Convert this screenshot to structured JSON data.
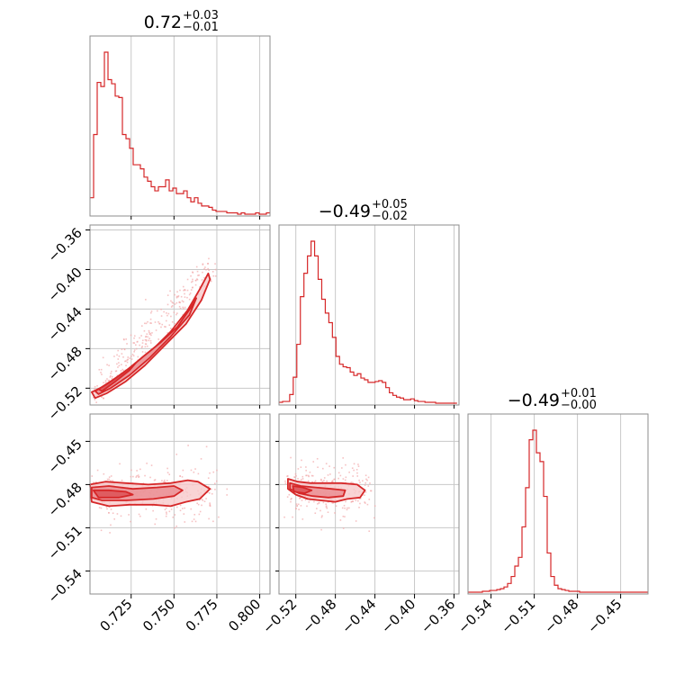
{
  "colors": {
    "series": "#d62728",
    "fill_outer": "#f7c9ca",
    "fill_inner": "#e8868a",
    "grid": "#c8c8c8",
    "frame": "#8c8c8c"
  },
  "chart_data": {
    "type": "corner",
    "grid": true,
    "parameters": [
      {
        "id": "p1",
        "range": [
          0.701,
          0.806
        ],
        "ticks": [
          0.725,
          0.75,
          0.775,
          0.8
        ],
        "tick_labels": [
          "0.725",
          "0.750",
          "0.775",
          "0.800"
        ],
        "title": {
          "value": "0.72",
          "upper": "+0.03",
          "lower": "−0.01"
        }
      },
      {
        "id": "p2",
        "range": [
          -0.537,
          -0.355
        ],
        "ticks": [
          -0.52,
          -0.48,
          -0.44,
          -0.4,
          -0.36
        ],
        "tick_labels": [
          "−0.52",
          "−0.48",
          "−0.44",
          "−0.40",
          "−0.36"
        ],
        "title": {
          "value": "−0.49",
          "upper": "+0.05",
          "lower": "−0.02"
        }
      },
      {
        "id": "p3",
        "range": [
          -0.556,
          -0.431
        ],
        "ticks": [
          -0.54,
          -0.51,
          -0.48,
          -0.45
        ],
        "tick_labels": [
          "−0.54",
          "−0.51",
          "−0.48",
          "−0.45"
        ],
        "title": {
          "value": "−0.49",
          "upper": "+0.01",
          "lower": "−0.00"
        }
      }
    ],
    "histograms": [
      {
        "param": "p1",
        "bin_edges": [
          0.701,
          0.7031,
          0.7052,
          0.7073,
          0.7094,
          0.7115,
          0.7136,
          0.7157,
          0.7178,
          0.7199,
          0.722,
          0.7241,
          0.7262,
          0.7283,
          0.7304,
          0.7325,
          0.7346,
          0.7367,
          0.7388,
          0.7409,
          0.743,
          0.7451,
          0.7472,
          0.7493,
          0.7514,
          0.7535,
          0.7556,
          0.7577,
          0.7598,
          0.7619,
          0.764,
          0.7661,
          0.7682,
          0.7703,
          0.7724,
          0.7745,
          0.7766,
          0.7787,
          0.7808,
          0.7829,
          0.785,
          0.7871,
          0.7892,
          0.7913,
          0.7934,
          0.7955,
          0.7976,
          0.7997,
          0.8018,
          0.8039,
          0.806
        ],
        "counts": [
          12,
          58,
          96,
          93,
          118,
          98,
          95,
          86,
          85,
          58,
          55,
          48,
          36,
          36,
          33,
          27,
          24,
          20,
          17,
          20,
          20,
          25,
          17,
          19,
          15,
          15,
          17,
          12,
          9,
          12,
          8,
          6,
          6,
          5,
          3,
          2,
          2,
          2,
          1,
          1,
          1,
          0,
          1,
          0,
          0,
          0,
          1,
          0,
          0,
          1
        ]
      },
      {
        "param": "p2",
        "bin_edges": [
          -0.537,
          -0.5334,
          -0.5298,
          -0.5262,
          -0.5226,
          -0.519,
          -0.5154,
          -0.5118,
          -0.5082,
          -0.5046,
          -0.501,
          -0.4974,
          -0.4938,
          -0.4902,
          -0.4866,
          -0.483,
          -0.4794,
          -0.4758,
          -0.4722,
          -0.4686,
          -0.465,
          -0.4614,
          -0.4578,
          -0.4542,
          -0.4506,
          -0.447,
          -0.4434,
          -0.4398,
          -0.4362,
          -0.4326,
          -0.429,
          -0.4254,
          -0.4218,
          -0.4182,
          -0.4146,
          -0.411,
          -0.4074,
          -0.4038,
          -0.4002,
          -0.3966,
          -0.393,
          -0.3894,
          -0.3858,
          -0.3822,
          -0.3786,
          -0.375,
          -0.3714,
          -0.3678,
          -0.3642,
          -0.3606,
          -0.357
        ],
        "counts": [
          1,
          2,
          2,
          10,
          30,
          68,
          123,
          150,
          170,
          187,
          170,
          143,
          120,
          104,
          93,
          76,
          54,
          45,
          42,
          41,
          36,
          32,
          34,
          29,
          27,
          24,
          24,
          25,
          26,
          24,
          18,
          12,
          9,
          7,
          6,
          4,
          4,
          5,
          3,
          2,
          2,
          1,
          1,
          1,
          0,
          0,
          0,
          0,
          0,
          0
        ]
      },
      {
        "param": "p3",
        "bin_edges": [
          -0.556,
          -0.5535,
          -0.551,
          -0.5485,
          -0.546,
          -0.5435,
          -0.541,
          -0.5385,
          -0.536,
          -0.5335,
          -0.531,
          -0.5285,
          -0.526,
          -0.5235,
          -0.521,
          -0.5185,
          -0.516,
          -0.5135,
          -0.511,
          -0.5085,
          -0.506,
          -0.5035,
          -0.501,
          -0.4985,
          -0.496,
          -0.4935,
          -0.491,
          -0.4885,
          -0.486,
          -0.4835,
          -0.481,
          -0.4785,
          -0.476,
          -0.4735,
          -0.471,
          -0.4685,
          -0.466,
          -0.4635,
          -0.461,
          -0.4585,
          -0.456,
          -0.4535,
          -0.451,
          -0.4485,
          -0.446,
          -0.4435,
          -0.441,
          -0.4385,
          -0.436,
          -0.4335,
          -0.431
        ],
        "counts": [
          0,
          0,
          0,
          0,
          1,
          1,
          2,
          2,
          3,
          4,
          6,
          10,
          18,
          30,
          40,
          75,
          120,
          175,
          186,
          160,
          150,
          110,
          45,
          18,
          8,
          4,
          3,
          2,
          1,
          1,
          1,
          0,
          0,
          0,
          0,
          0,
          0,
          0,
          0,
          0,
          0,
          0,
          0,
          0,
          0,
          0,
          0,
          0,
          0,
          0
        ]
      }
    ],
    "scatter_clouds": [
      {
        "x": "p1",
        "y": "p2",
        "description_points": "posterior samples"
      },
      {
        "x": "p1",
        "y": "p3",
        "description_points": "posterior samples"
      },
      {
        "x": "p2",
        "y": "p3",
        "description_points": "posterior samples"
      }
    ],
    "contours": [
      {
        "x": "p1",
        "y": "p2",
        "levels": [
          [
            [
              0.702,
              -0.524
            ],
            [
              0.708,
              -0.519
            ],
            [
              0.718,
              -0.508
            ],
            [
              0.728,
              -0.494
            ],
            [
              0.738,
              -0.48
            ],
            [
              0.748,
              -0.463
            ],
            [
              0.758,
              -0.441
            ],
            [
              0.765,
              -0.42
            ],
            [
              0.77,
              -0.404
            ],
            [
              0.771,
              -0.41
            ],
            [
              0.766,
              -0.431
            ],
            [
              0.757,
              -0.455
            ],
            [
              0.745,
              -0.476
            ],
            [
              0.733,
              -0.497
            ],
            [
              0.722,
              -0.513
            ],
            [
              0.711,
              -0.525
            ],
            [
              0.704,
              -0.53
            ]
          ],
          [
            [
              0.704,
              -0.523
            ],
            [
              0.712,
              -0.515
            ],
            [
              0.722,
              -0.503
            ],
            [
              0.732,
              -0.488
            ],
            [
              0.742,
              -0.474
            ],
            [
              0.752,
              -0.458
            ],
            [
              0.76,
              -0.438
            ],
            [
              0.763,
              -0.429
            ],
            [
              0.759,
              -0.446
            ],
            [
              0.748,
              -0.468
            ],
            [
              0.736,
              -0.489
            ],
            [
              0.724,
              -0.507
            ],
            [
              0.713,
              -0.52
            ],
            [
              0.706,
              -0.526
            ]
          ],
          [
            [
              0.706,
              -0.521
            ],
            [
              0.714,
              -0.512
            ],
            [
              0.723,
              -0.501
            ],
            [
              0.728,
              -0.494
            ],
            [
              0.724,
              -0.502
            ],
            [
              0.716,
              -0.513
            ],
            [
              0.708,
              -0.523
            ]
          ]
        ]
      },
      {
        "x": "p1",
        "y": "p3",
        "levels": [
          [
            [
              0.701,
              -0.48
            ],
            [
              0.71,
              -0.478
            ],
            [
              0.722,
              -0.479
            ],
            [
              0.735,
              -0.48
            ],
            [
              0.748,
              -0.479
            ],
            [
              0.758,
              -0.477
            ],
            [
              0.764,
              -0.478
            ],
            [
              0.771,
              -0.483
            ],
            [
              0.765,
              -0.49
            ],
            [
              0.757,
              -0.492
            ],
            [
              0.748,
              -0.495
            ],
            [
              0.738,
              -0.494
            ],
            [
              0.724,
              -0.494
            ],
            [
              0.712,
              -0.495
            ],
            [
              0.702,
              -0.492
            ]
          ],
          [
            [
              0.702,
              -0.482
            ],
            [
              0.712,
              -0.481
            ],
            [
              0.726,
              -0.483
            ],
            [
              0.74,
              -0.482
            ],
            [
              0.75,
              -0.481
            ],
            [
              0.755,
              -0.484
            ],
            [
              0.75,
              -0.488
            ],
            [
              0.738,
              -0.49
            ],
            [
              0.722,
              -0.491
            ],
            [
              0.708,
              -0.491
            ],
            [
              0.702,
              -0.489
            ]
          ],
          [
            [
              0.703,
              -0.484
            ],
            [
              0.712,
              -0.484
            ],
            [
              0.722,
              -0.485
            ],
            [
              0.726,
              -0.487
            ],
            [
              0.718,
              -0.489
            ],
            [
              0.706,
              -0.489
            ]
          ]
        ]
      },
      {
        "x": "p2",
        "y": "p3",
        "levels": [
          [
            [
              -0.528,
              -0.476
            ],
            [
              -0.518,
              -0.478
            ],
            [
              -0.505,
              -0.479
            ],
            [
              -0.49,
              -0.479
            ],
            [
              -0.474,
              -0.479
            ],
            [
              -0.458,
              -0.48
            ],
            [
              -0.45,
              -0.484
            ],
            [
              -0.455,
              -0.489
            ],
            [
              -0.468,
              -0.49
            ],
            [
              -0.48,
              -0.492
            ],
            [
              -0.495,
              -0.491
            ],
            [
              -0.508,
              -0.49
            ],
            [
              -0.52,
              -0.487
            ],
            [
              -0.528,
              -0.483
            ]
          ],
          [
            [
              -0.526,
              -0.479
            ],
            [
              -0.515,
              -0.481
            ],
            [
              -0.5,
              -0.482
            ],
            [
              -0.484,
              -0.483
            ],
            [
              -0.47,
              -0.484
            ],
            [
              -0.472,
              -0.488
            ],
            [
              -0.487,
              -0.489
            ],
            [
              -0.503,
              -0.488
            ],
            [
              -0.517,
              -0.486
            ],
            [
              -0.526,
              -0.483
            ]
          ],
          [
            [
              -0.523,
              -0.481
            ],
            [
              -0.513,
              -0.482
            ],
            [
              -0.504,
              -0.484
            ],
            [
              -0.511,
              -0.486
            ],
            [
              -0.522,
              -0.485
            ]
          ]
        ]
      }
    ]
  }
}
